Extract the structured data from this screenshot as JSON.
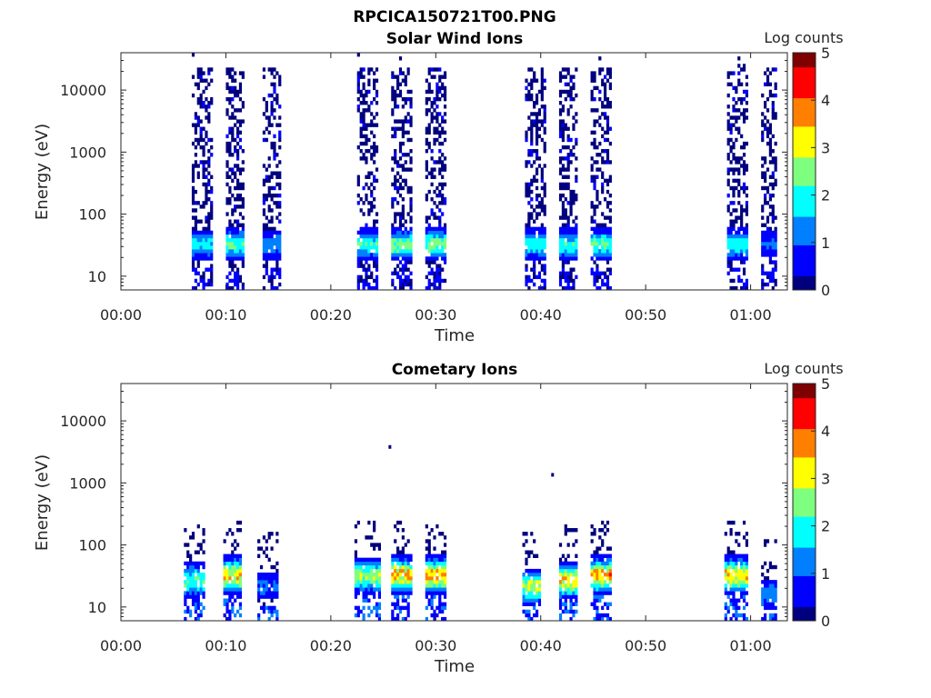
{
  "figure_title": "RPCICA150721T00.PNG",
  "colormap": [
    "#00007f",
    "#0000ff",
    "#007fff",
    "#00ffff",
    "#7fff7f",
    "#ffff00",
    "#ff7f00",
    "#ff0000",
    "#7f0000"
  ],
  "chart_data": [
    {
      "type": "heatmap",
      "title": "Solar Wind Ions",
      "xlabel": "Time",
      "ylabel": "Energy (eV)",
      "y_scale": "log",
      "ylim": [
        6,
        40000
      ],
      "xlim_minutes": [
        0,
        63.5
      ],
      "x_ticks": [
        "00:00",
        "00:10",
        "00:20",
        "00:30",
        "00:40",
        "00:50",
        "01:00"
      ],
      "y_ticks": [
        "10",
        "100",
        "1000",
        "10000"
      ],
      "colorbar": {
        "label": "Log counts",
        "range": [
          0,
          5
        ],
        "ticks": [
          "0",
          "1",
          "2",
          "3",
          "4",
          "5"
        ]
      },
      "bursts": [
        {
          "start": "00:06:45",
          "end": "00:08:45",
          "peak_log_counts": 2.0,
          "peak_energy_eV": 30
        },
        {
          "start": "00:10:00",
          "end": "00:11:45",
          "peak_log_counts": 2.5,
          "peak_energy_eV": 30
        },
        {
          "start": "00:13:30",
          "end": "00:15:15",
          "peak_log_counts": 1.5,
          "peak_energy_eV": 30
        },
        {
          "start": "00:22:30",
          "end": "00:24:30",
          "peak_log_counts": 2.2,
          "peak_energy_eV": 30
        },
        {
          "start": "00:25:45",
          "end": "00:27:45",
          "peak_log_counts": 2.8,
          "peak_energy_eV": 30
        },
        {
          "start": "00:29:00",
          "end": "00:31:00",
          "peak_log_counts": 2.8,
          "peak_energy_eV": 30
        },
        {
          "start": "00:38:30",
          "end": "00:40:30",
          "peak_log_counts": 2.2,
          "peak_energy_eV": 30
        },
        {
          "start": "00:41:45",
          "end": "00:43:30",
          "peak_log_counts": 2.2,
          "peak_energy_eV": 30
        },
        {
          "start": "00:44:45",
          "end": "00:46:45",
          "peak_log_counts": 2.5,
          "peak_energy_eV": 30
        },
        {
          "start": "00:57:45",
          "end": "00:59:45",
          "peak_log_counts": 2.2,
          "peak_energy_eV": 30
        },
        {
          "start": "01:01:00",
          "end": "01:02:30",
          "peak_log_counts": 1.2,
          "peak_energy_eV": 30
        }
      ]
    },
    {
      "type": "heatmap",
      "title": "Cometary Ions",
      "xlabel": "Time",
      "ylabel": "Energy (eV)",
      "y_scale": "log",
      "ylim": [
        6,
        40000
      ],
      "xlim_minutes": [
        0,
        63.5
      ],
      "x_ticks": [
        "00:00",
        "00:10",
        "00:20",
        "00:30",
        "00:40",
        "00:50",
        "01:00"
      ],
      "y_ticks": [
        "10",
        "100",
        "1000",
        "10000"
      ],
      "colorbar": {
        "label": "Log counts",
        "range": [
          0,
          5
        ],
        "ticks": [
          "0",
          "1",
          "2",
          "3",
          "4",
          "5"
        ]
      },
      "bursts": [
        {
          "start": "00:06:00",
          "end": "00:08:00",
          "peak_log_counts": 2.5,
          "peak_energy_eV": 25
        },
        {
          "start": "00:09:45",
          "end": "00:11:30",
          "peak_log_counts": 3.8,
          "peak_energy_eV": 30
        },
        {
          "start": "00:13:00",
          "end": "00:15:00",
          "peak_log_counts": 1.2,
          "peak_energy_eV": 20
        },
        {
          "start": "00:22:15",
          "end": "00:24:45",
          "peak_log_counts": 3.0,
          "peak_energy_eV": 30
        },
        {
          "start": "00:25:45",
          "end": "00:27:45",
          "peak_log_counts": 4.0,
          "peak_energy_eV": 30
        },
        {
          "start": "00:29:00",
          "end": "00:31:00",
          "peak_log_counts": 4.0,
          "peak_energy_eV": 30
        },
        {
          "start": "00:38:15",
          "end": "00:40:00",
          "peak_log_counts": 3.2,
          "peak_energy_eV": 20
        },
        {
          "start": "00:41:45",
          "end": "00:43:30",
          "peak_log_counts": 3.8,
          "peak_energy_eV": 25
        },
        {
          "start": "00:44:45",
          "end": "00:46:45",
          "peak_log_counts": 4.0,
          "peak_energy_eV": 30
        },
        {
          "start": "00:57:30",
          "end": "00:59:45",
          "peak_log_counts": 3.8,
          "peak_energy_eV": 30
        },
        {
          "start": "01:01:00",
          "end": "01:02:30",
          "peak_log_counts": 1.5,
          "peak_energy_eV": 15
        }
      ],
      "isolated_points": [
        {
          "time": "00:25:30",
          "energy_eV": 3800,
          "log_counts": 0.2
        },
        {
          "time": "00:41:00",
          "energy_eV": 1350,
          "log_counts": 0.2
        }
      ]
    }
  ]
}
